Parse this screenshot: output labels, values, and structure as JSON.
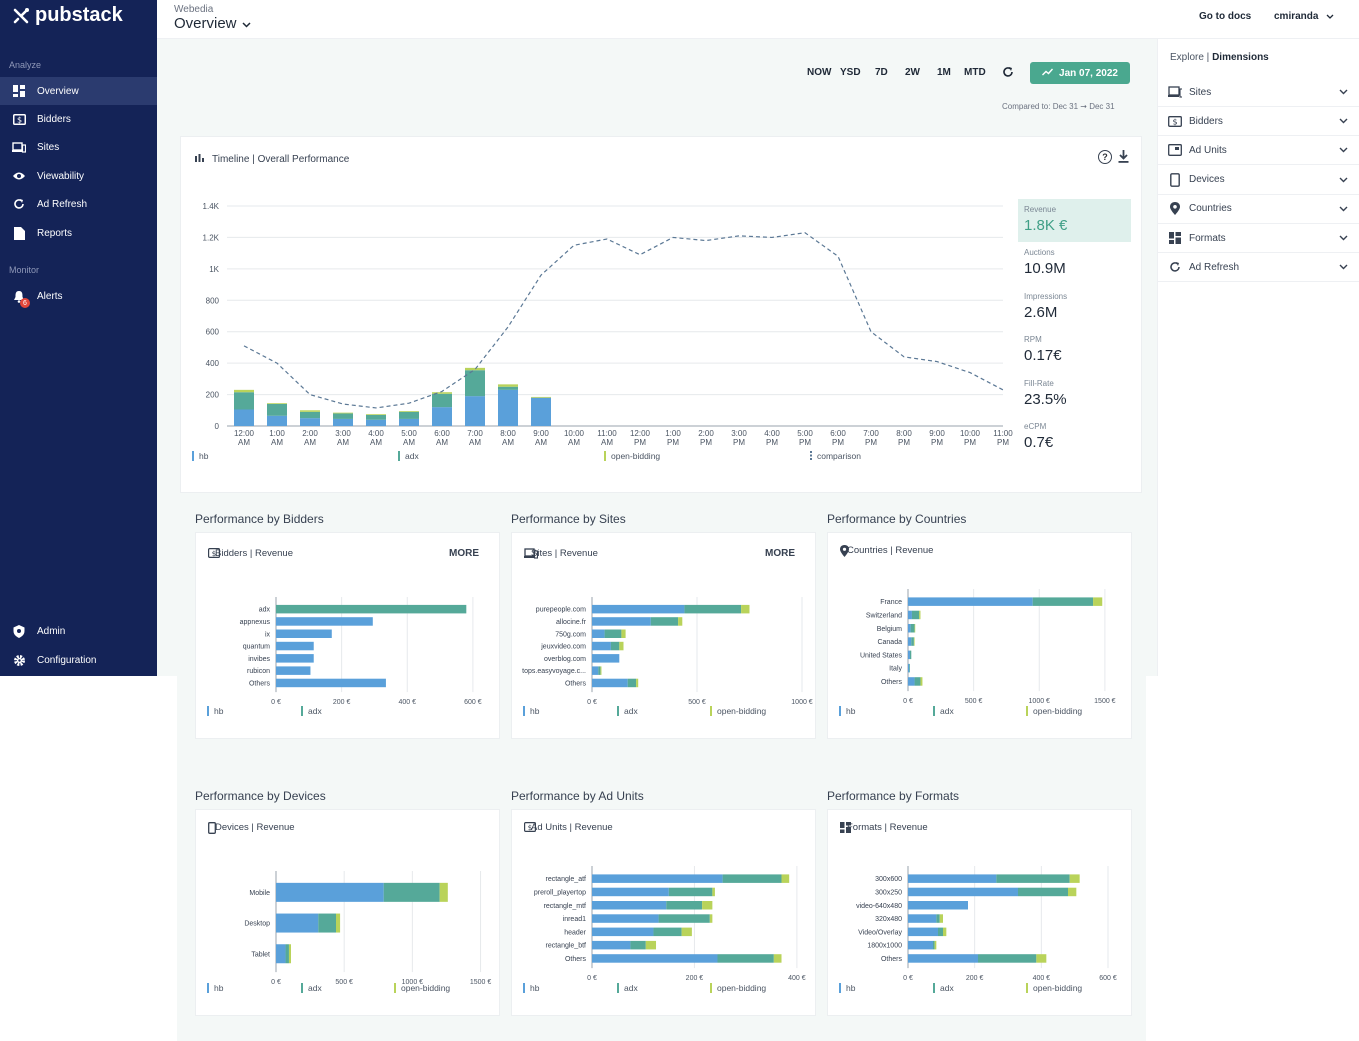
{
  "app": {
    "brand": "pubstack",
    "org": "Webedia",
    "page_title": "Overview",
    "docs_link": "Go to docs",
    "user": "cmiranda"
  },
  "colors": {
    "sidebar": "#142357",
    "hb": "#5aa0da",
    "adx": "#55a999",
    "open_bidding": "#b9d35a",
    "accent": "#4aa88f",
    "comparison": "#5b7895"
  },
  "sidebar": {
    "section_analyze": "Analyze",
    "section_monitor": "Monitor",
    "items": [
      {
        "label": "Overview",
        "icon": "dashboard-icon"
      },
      {
        "label": "Bidders",
        "icon": "dollar-icon"
      },
      {
        "label": "Sites",
        "icon": "devices-icon"
      },
      {
        "label": "Viewability",
        "icon": "eye-icon"
      },
      {
        "label": "Ad Refresh",
        "icon": "refresh-icon"
      },
      {
        "label": "Reports",
        "icon": "document-icon"
      }
    ],
    "alerts": {
      "label": "Alerts",
      "count": "6",
      "icon": "bell-icon"
    },
    "admin": {
      "label": "Admin",
      "icon": "shield-icon"
    },
    "configuration": {
      "label": "Configuration",
      "icon": "gear-icon"
    }
  },
  "toolbar": {
    "ranges": [
      "NOW",
      "YSD",
      "7D",
      "2W",
      "1M",
      "MTD"
    ],
    "date_label": "Jan 07, 2022",
    "compared": "Compared to: Dec 31 ➞ Dec 31"
  },
  "timeline": {
    "title": "Timeline | Overall Performance",
    "metrics": [
      {
        "label": "Revenue",
        "value": "1.8K €"
      },
      {
        "label": "Auctions",
        "value": "10.9M"
      },
      {
        "label": "Impressions",
        "value": "2.6M"
      },
      {
        "label": "RPM",
        "value": "0.17€"
      },
      {
        "label": "Fill-Rate",
        "value": "23.5%"
      },
      {
        "label": "eCPM",
        "value": "0.7€"
      }
    ]
  },
  "explore": {
    "title_prefix": "Explore | ",
    "title_main": "Dimensions",
    "items": [
      {
        "label": "Sites",
        "icon": "devices-icon"
      },
      {
        "label": "Bidders",
        "icon": "dollar-icon"
      },
      {
        "label": "Ad Units",
        "icon": "ad-unit-icon"
      },
      {
        "label": "Devices",
        "icon": "phone-icon"
      },
      {
        "label": "Countries",
        "icon": "location-pin-icon"
      },
      {
        "label": "Formats",
        "icon": "formats-icon"
      },
      {
        "label": "Ad Refresh",
        "icon": "refresh-icon"
      }
    ]
  },
  "sections": {
    "bidders": {
      "title": "Performance by Bidders",
      "card": "Bidders | Revenue",
      "more": "MORE"
    },
    "sites": {
      "title": "Performance by Sites",
      "card": "Sites | Revenue",
      "more": "MORE"
    },
    "countries": {
      "title": "Performance by Countries",
      "card": "Countries | Revenue"
    },
    "devices": {
      "title": "Performance by Devices",
      "card": "Devices | Revenue"
    },
    "adunits": {
      "title": "Performance by Ad Units",
      "card": "Ad Units | Revenue"
    },
    "formats": {
      "title": "Performance by Formats",
      "card": "Formats | Revenue"
    }
  },
  "chart_data": [
    {
      "id": "timeline",
      "type": "bar",
      "stacked": true,
      "categories": [
        "12:00 AM",
        "1:00 AM",
        "2:00 AM",
        "3:00 AM",
        "4:00 AM",
        "5:00 AM",
        "6:00 AM",
        "7:00 AM",
        "8:00 AM",
        "9:00 AM",
        "10:00 AM",
        "11:00 AM",
        "12:00 PM",
        "1:00 PM",
        "2:00 PM",
        "3:00 PM",
        "4:00 PM",
        "5:00 PM",
        "6:00 PM",
        "7:00 PM",
        "8:00 PM",
        "9:00 PM",
        "10:00 PM",
        "11:00 PM"
      ],
      "series": [
        {
          "name": "hb",
          "values": [
            105,
            65,
            50,
            45,
            40,
            45,
            120,
            190,
            230,
            180,
            0,
            0,
            0,
            0,
            0,
            0,
            0,
            0,
            0,
            0,
            0,
            0,
            0,
            0
          ]
        },
        {
          "name": "adx",
          "values": [
            110,
            75,
            40,
            35,
            30,
            45,
            85,
            165,
            20,
            0,
            0,
            0,
            0,
            0,
            0,
            0,
            0,
            0,
            0,
            0,
            0,
            0,
            0,
            0
          ]
        },
        {
          "name": "open-bidding",
          "values": [
            15,
            5,
            10,
            5,
            5,
            5,
            10,
            15,
            15,
            5,
            0,
            0,
            0,
            0,
            0,
            0,
            0,
            0,
            0,
            0,
            0,
            0,
            0,
            0
          ]
        },
        {
          "name": "comparison",
          "line": true,
          "values": [
            510,
            400,
            200,
            140,
            115,
            145,
            220,
            360,
            630,
            960,
            1150,
            1190,
            1090,
            1200,
            1180,
            1210,
            1200,
            1230,
            1080,
            600,
            440,
            410,
            340,
            230
          ]
        }
      ],
      "yticks": [
        "0",
        "200",
        "400",
        "600",
        "800",
        "1K",
        "1.2K",
        "1.4K"
      ],
      "ylim": [
        0,
        1400
      ]
    },
    {
      "id": "bidders",
      "type": "bar",
      "orientation": "horizontal",
      "categories": [
        "adx",
        "appnexus",
        "ix",
        "quantum",
        "invibes",
        "rubicon",
        "Others"
      ],
      "series": [
        {
          "name": "hb",
          "values": [
            0,
            295,
            170,
            115,
            115,
            105,
            335
          ]
        },
        {
          "name": "adx",
          "values": [
            580,
            0,
            0,
            0,
            0,
            0,
            0
          ]
        }
      ],
      "xticks": [
        "0 €",
        "200 €",
        "400 €",
        "600 €"
      ],
      "xlim": [
        0,
        640
      ]
    },
    {
      "id": "sites",
      "type": "bar",
      "orientation": "horizontal",
      "categories": [
        "purepeople.com",
        "allocine.fr",
        "750g.com",
        "jeuxvideo.com",
        "overblog.com",
        "tops.easyvoyage.c...",
        "Others"
      ],
      "series": [
        {
          "name": "hb",
          "values": [
            440,
            280,
            60,
            90,
            130,
            30,
            170
          ]
        },
        {
          "name": "adx",
          "values": [
            270,
            130,
            80,
            40,
            0,
            10,
            40
          ]
        },
        {
          "name": "open-bidding",
          "values": [
            40,
            20,
            20,
            20,
            0,
            5,
            10
          ]
        }
      ],
      "xticks": [
        "0 €",
        "500 €",
        "1000 €"
      ],
      "xlim": [
        0,
        1000
      ]
    },
    {
      "id": "countries",
      "type": "bar",
      "orientation": "horizontal",
      "categories": [
        "France",
        "Switzerland",
        "Belgium",
        "Canada",
        "United States",
        "Italy",
        "Others"
      ],
      "series": [
        {
          "name": "hb",
          "values": [
            950,
            30,
            20,
            25,
            15,
            10,
            50
          ]
        },
        {
          "name": "adx",
          "values": [
            460,
            55,
            30,
            20,
            10,
            5,
            45
          ]
        },
        {
          "name": "open-bidding",
          "values": [
            70,
            10,
            5,
            5,
            0,
            0,
            15
          ]
        }
      ],
      "xticks": [
        "0 €",
        "500 €",
        "1000 €",
        "1500 €"
      ],
      "xlim": [
        0,
        1600
      ]
    },
    {
      "id": "devices",
      "type": "bar",
      "orientation": "horizontal",
      "categories": [
        "Mobile",
        "Desktop",
        "Tablet"
      ],
      "series": [
        {
          "name": "hb",
          "values": [
            790,
            310,
            70
          ]
        },
        {
          "name": "adx",
          "values": [
            410,
            130,
            25
          ]
        },
        {
          "name": "open-bidding",
          "values": [
            60,
            30,
            15
          ]
        }
      ],
      "xticks": [
        "0 €",
        "500 €",
        "1000 €",
        "1500 €"
      ],
      "xlim": [
        0,
        1540
      ]
    },
    {
      "id": "adunits",
      "type": "bar",
      "orientation": "horizontal",
      "categories": [
        "rectangle_atf",
        "preroll_playertop",
        "rectangle_mtf",
        "inread1",
        "header",
        "rectangle_btf",
        "Others"
      ],
      "series": [
        {
          "name": "hb",
          "values": [
            255,
            150,
            145,
            130,
            120,
            75,
            245
          ]
        },
        {
          "name": "adx",
          "values": [
            115,
            85,
            70,
            100,
            55,
            30,
            110
          ]
        },
        {
          "name": "open-bidding",
          "values": [
            15,
            5,
            20,
            5,
            20,
            20,
            15
          ]
        }
      ],
      "xticks": [
        "0 €",
        "200 €",
        "400 €"
      ],
      "xlim": [
        0,
        410
      ]
    },
    {
      "id": "formats",
      "type": "bar",
      "orientation": "horizontal",
      "categories": [
        "300x600",
        "300x250",
        "video-640x480",
        "320x480",
        "Video/Overlay",
        "1800x1000",
        "Others"
      ],
      "series": [
        {
          "name": "hb",
          "values": [
            265,
            330,
            180,
            85,
            90,
            75,
            210
          ]
        },
        {
          "name": "adx",
          "values": [
            220,
            150,
            0,
            10,
            15,
            5,
            175
          ]
        },
        {
          "name": "open-bidding",
          "values": [
            30,
            25,
            0,
            10,
            10,
            5,
            30
          ]
        }
      ],
      "xticks": [
        "0 €",
        "200 €",
        "400 €",
        "600 €"
      ],
      "xlim": [
        0,
        630
      ]
    }
  ]
}
